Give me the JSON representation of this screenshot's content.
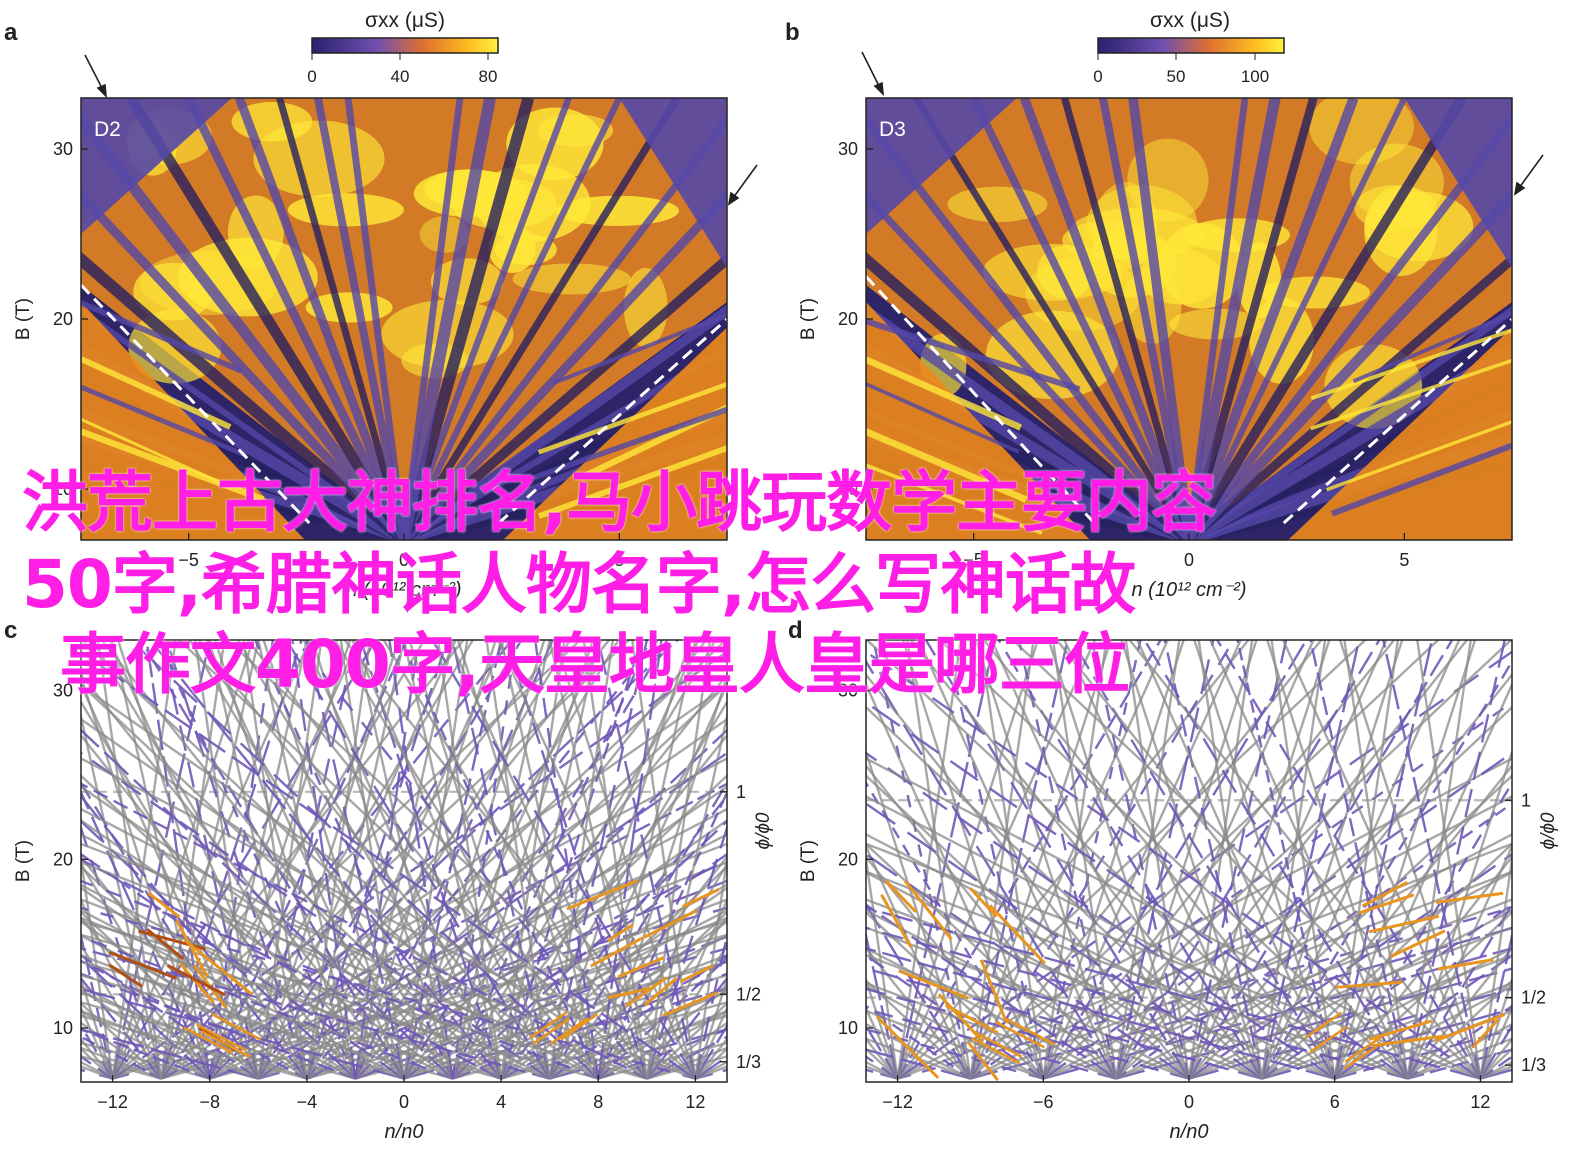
{
  "panels": [
    {
      "letter": "a",
      "label": "D2",
      "colorbar": {
        "title": "σxx (μS)",
        "ticks": [
          "0",
          "40",
          "80"
        ]
      },
      "kind": "map"
    },
    {
      "letter": "b",
      "label": "D3",
      "colorbar": {
        "title": "σxx (μS)",
        "ticks": [
          "0",
          "50",
          "100"
        ]
      },
      "kind": "map"
    },
    {
      "letter": "c",
      "kind": "lines"
    },
    {
      "letter": "d",
      "kind": "lines"
    }
  ],
  "chart_data": [
    {
      "type": "heatmap",
      "panel": "a",
      "label": "D2",
      "xlabel": "n (10¹² cm⁻²)",
      "ylabel": "B (T)",
      "xticks": [
        "-5",
        "0",
        "5"
      ],
      "yticks": [
        "10",
        "20",
        "30"
      ],
      "xlim": [
        -7.5,
        7.5
      ],
      "ylim": [
        7,
        33
      ],
      "colorbar": {
        "label": "σxx (μS)",
        "range": [
          0,
          90
        ],
        "ticks": [
          0,
          40,
          80
        ]
      },
      "dashed_lines": [
        {
          "n": [
            -7.5,
            -2.2
          ],
          "B": [
            22,
            8
          ]
        },
        {
          "n": [
            2.2,
            7.5
          ],
          "B": [
            8,
            20
          ]
        }
      ]
    },
    {
      "type": "heatmap",
      "panel": "b",
      "label": "D3",
      "xlabel": "n (10¹² cm⁻²)",
      "ylabel": "B (T)",
      "xticks": [
        "-5",
        "0",
        "5"
      ],
      "yticks": [
        "10",
        "20",
        "30"
      ],
      "xlim": [
        -7.5,
        7.5
      ],
      "ylim": [
        7,
        33
      ],
      "colorbar": {
        "label": "σxx (μS)",
        "range": [
          0,
          110
        ],
        "ticks": [
          0,
          50,
          100
        ]
      },
      "dashed_lines": [
        {
          "n": [
            -7.5,
            -2.2
          ],
          "B": [
            22.5,
            8
          ]
        },
        {
          "n": [
            2.2,
            7.5
          ],
          "B": [
            8,
            20
          ]
        }
      ]
    },
    {
      "type": "line",
      "panel": "c",
      "xlabel": "n/n0",
      "ylabel": "B (T)",
      "y2label": "ϕ/ϕ0",
      "xticks": [
        -12,
        -8,
        -4,
        0,
        4,
        8,
        12
      ],
      "yticks": [
        10,
        20,
        30
      ],
      "y2ticks": [
        "1",
        "1/2",
        "1/3"
      ],
      "y2tick_B": [
        24,
        12,
        8
      ],
      "xlim": [
        -13.3,
        13.3
      ],
      "ylim": [
        6.8,
        33
      ],
      "fan_vertices_x": [
        -12,
        -10,
        -8,
        -6,
        -4,
        -2,
        0,
        2,
        4,
        6,
        8,
        10,
        12
      ],
      "fan_slopes": [
        0.4,
        0.55,
        0.75,
        1.0,
        1.35,
        1.8,
        2.4,
        3.2,
        4.5,
        6.5,
        10
      ]
    },
    {
      "type": "line",
      "panel": "d",
      "xlabel": "n/n0",
      "ylabel": "B (T)",
      "y2label": "ϕ/ϕ0",
      "xticks": [
        -12,
        -6,
        0,
        6,
        12
      ],
      "yticks": [
        10,
        20,
        30
      ],
      "y2ticks": [
        "1",
        "1/2",
        "1/3"
      ],
      "y2tick_B": [
        23.5,
        11.8,
        7.8
      ],
      "xlim": [
        -13.3,
        13.3
      ],
      "ylim": [
        6.8,
        33
      ],
      "fan_vertices_x": [
        -12,
        -9,
        -6,
        -3,
        0,
        3,
        6,
        9,
        12
      ],
      "fan_slopes": [
        0.4,
        0.55,
        0.75,
        1.0,
        1.35,
        1.8,
        2.4,
        3.2,
        4.5,
        6.5,
        10
      ]
    }
  ],
  "overlay_text": [
    "洪荒上古大神排名,马小跳玩数学主要内容",
    "50字,希腊神话人物名字,怎么写神话故",
    "事作文400字,天皇地皇人皇是哪三位"
  ],
  "colors": {
    "dark": "#262060",
    "purple": "#5548a8",
    "orange": "#ee8a1a",
    "yellow": "#ffe838",
    "gray_line": "#8a8a8a",
    "purple_line": "#6f58b8",
    "orange_line": "#e8951f",
    "brown_line": "#b04f14",
    "dashed_ref": "#b8b8b8",
    "overlay": "#ff1ee6"
  }
}
